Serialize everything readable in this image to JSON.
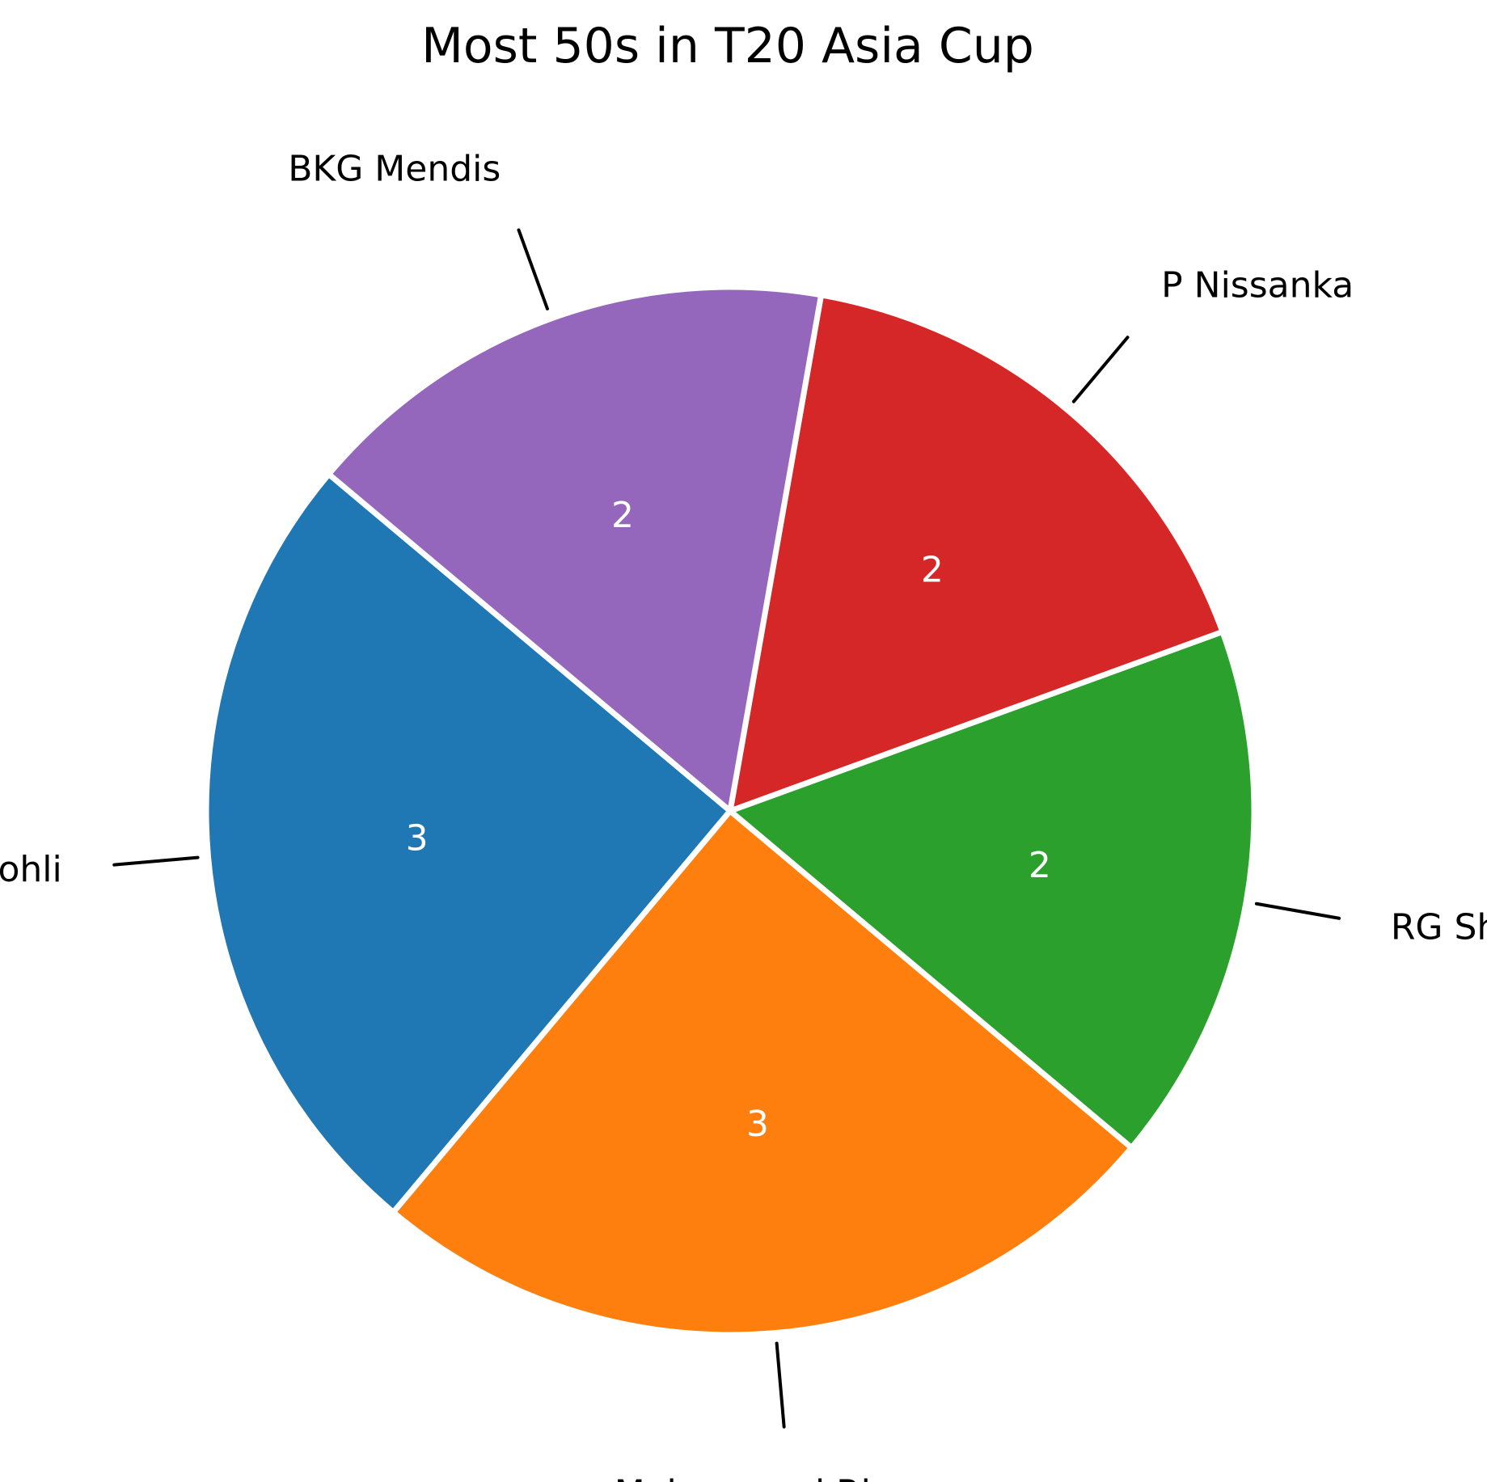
{
  "chart_data": {
    "type": "pie",
    "title": "Most 50s in T20 Asia Cup",
    "categories": [
      "V Kohli",
      "Mohammad Rizwan",
      "RG Sharma",
      "P Nissanka",
      "BKG Mendis"
    ],
    "values": [
      3,
      3,
      2,
      2,
      2
    ],
    "colors": [
      "#1f77b4",
      "#ff7f0e",
      "#2ca02c",
      "#d62728",
      "#9467bd"
    ],
    "value_labels": [
      "3",
      "3",
      "2",
      "2",
      "2"
    ],
    "direction": "counterclockwise",
    "start_angle_deg": 140,
    "legend": "none"
  }
}
